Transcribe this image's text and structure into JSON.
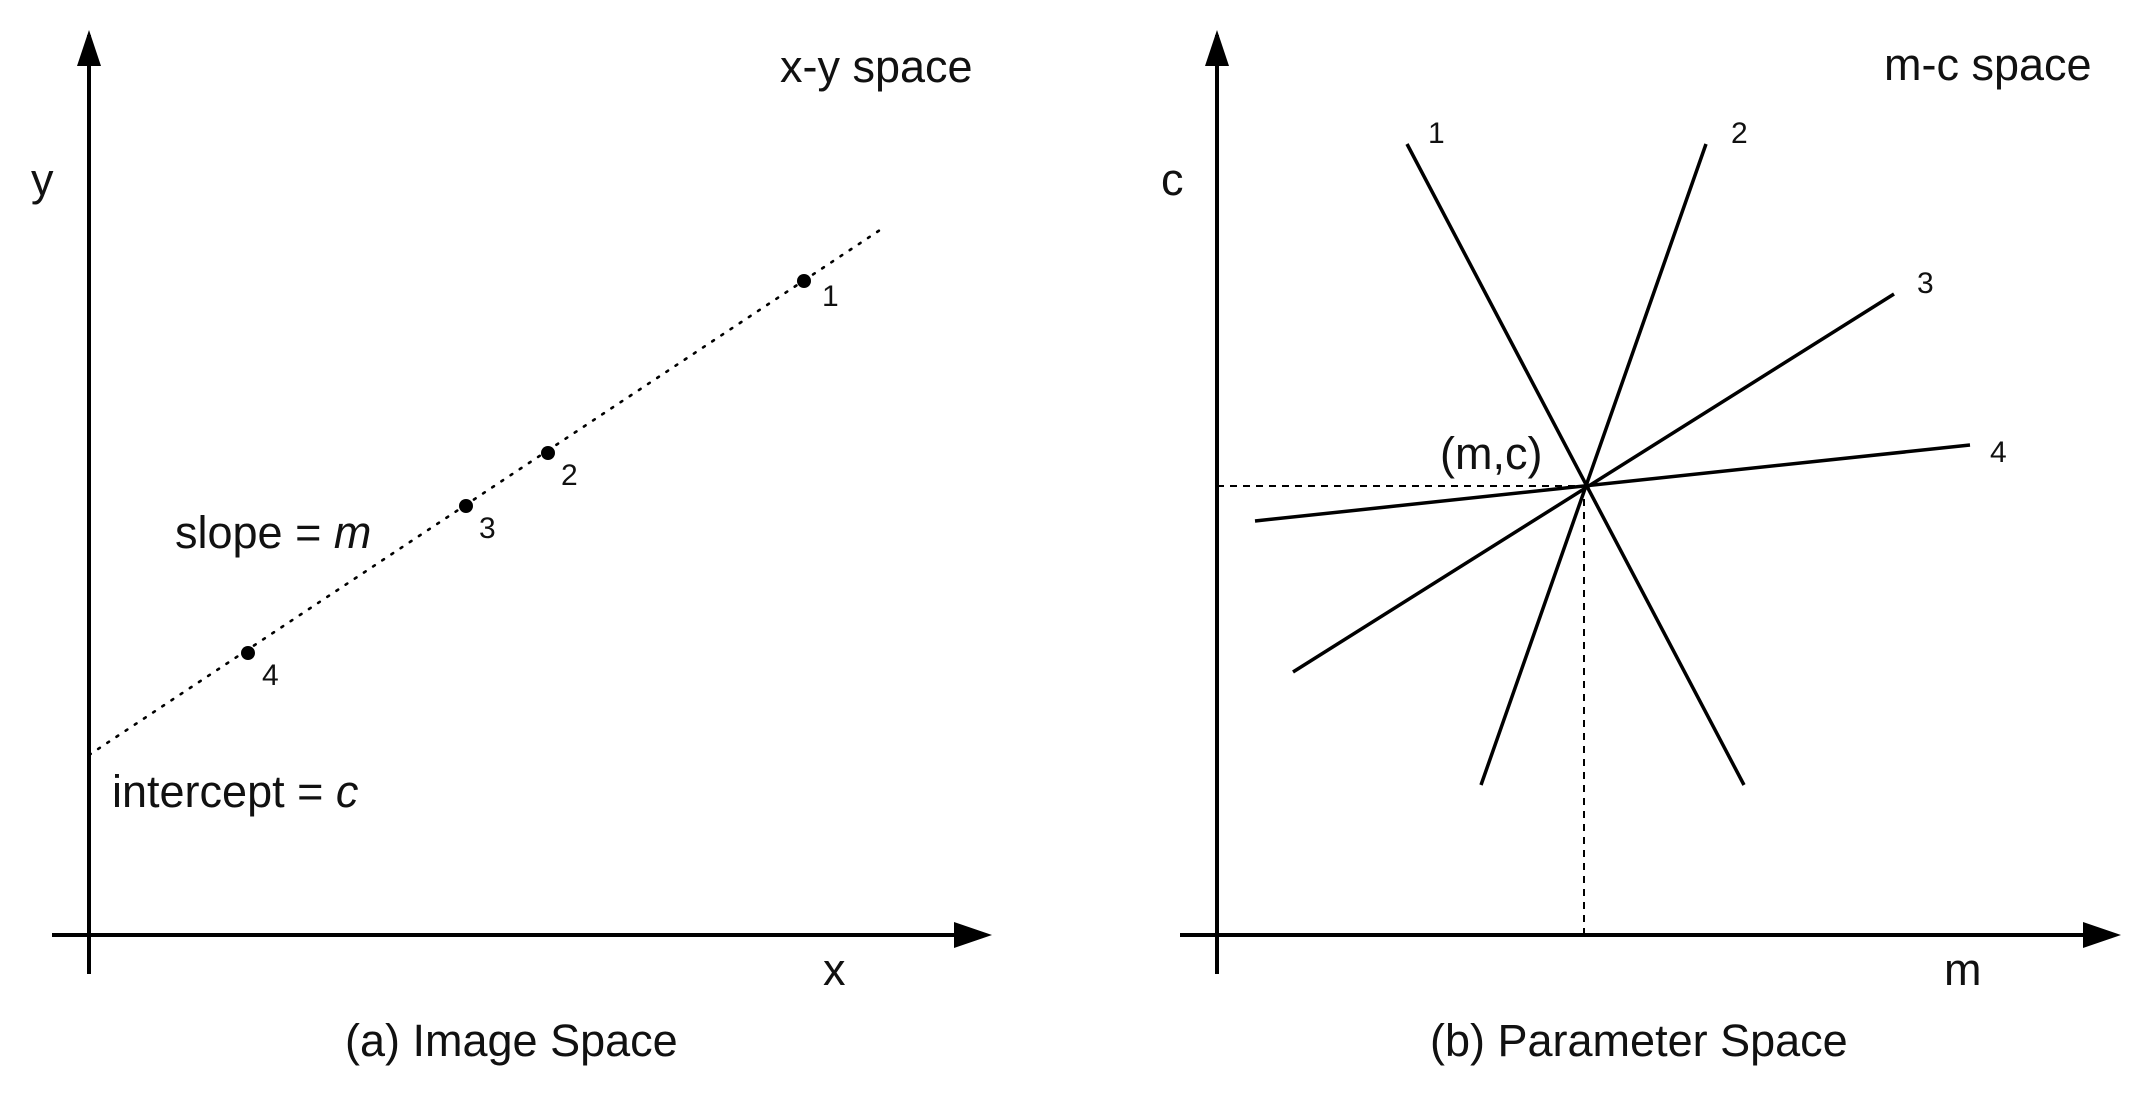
{
  "image_space": {
    "space_label": "x-y space",
    "x_axis_label": "x",
    "y_axis_label": "y",
    "slope_prefix": "slope = ",
    "slope_var": "m",
    "intercept_prefix": "intercept = ",
    "intercept_var": "c",
    "caption": "(a) Image Space",
    "points": [
      {
        "label": "1"
      },
      {
        "label": "2"
      },
      {
        "label": "3"
      },
      {
        "label": "4"
      }
    ]
  },
  "parameter_space": {
    "space_label": "m-c space",
    "x_axis_label": "m",
    "y_axis_label": "c",
    "intersection_label": "(m,c)",
    "caption": "(b) Parameter Space",
    "lines": [
      {
        "label": "1"
      },
      {
        "label": "2"
      },
      {
        "label": "3"
      },
      {
        "label": "4"
      }
    ]
  },
  "colors": {
    "ink": "#000000",
    "background": "#ffffff"
  }
}
